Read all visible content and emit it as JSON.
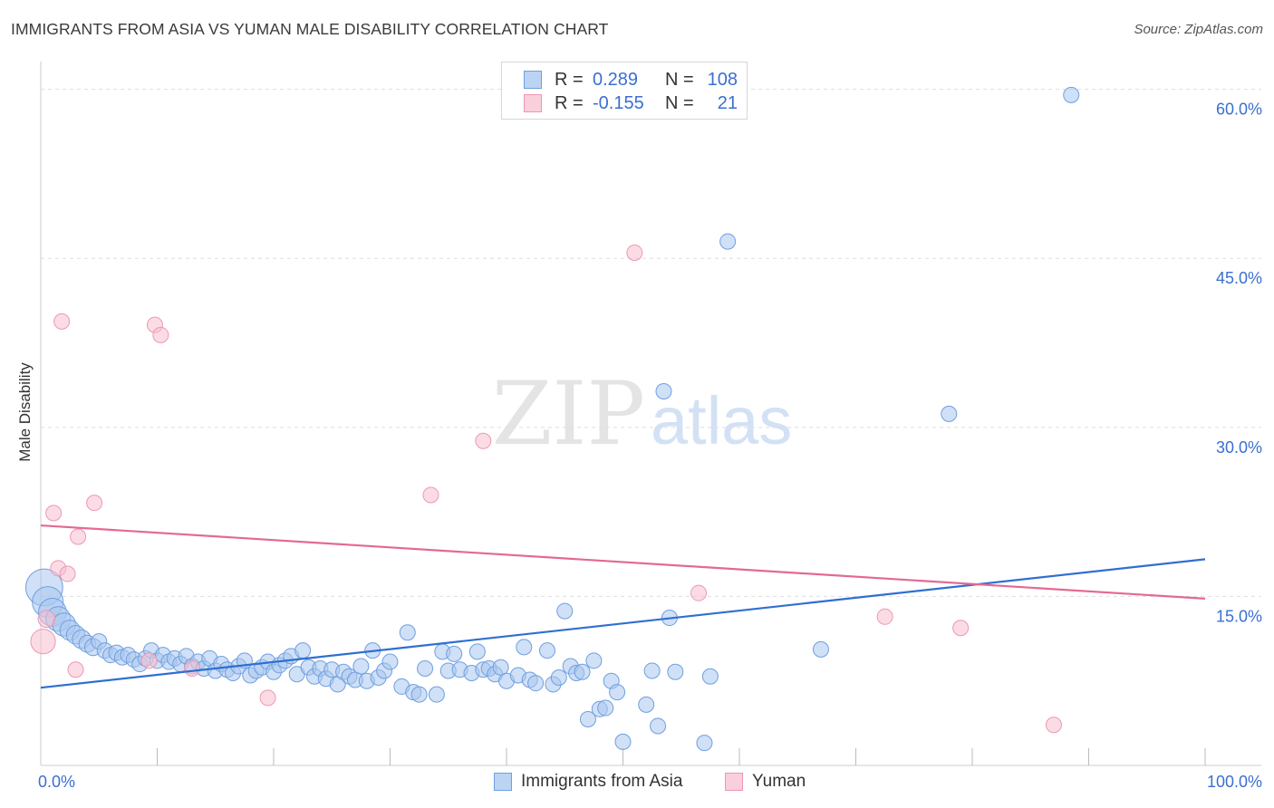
{
  "title": "IMMIGRANTS FROM ASIA VS YUMAN MALE DISABILITY CORRELATION CHART",
  "source": "Source: ZipAtlas.com",
  "watermark": {
    "zip": "ZIP",
    "atlas": "atlas"
  },
  "colors": {
    "blue_fill": "#a9c7ef",
    "blue_stroke": "#6f9fe0",
    "blue_line": "#2f6fd0",
    "pink_fill": "#f7bfd0",
    "pink_stroke": "#ee97b2",
    "pink_line": "#e26a93",
    "grid": "#dddddd",
    "tick_label": "#3b6fd0"
  },
  "legend": {
    "rows": [
      {
        "r_label": "R =",
        "r_value": "0.289",
        "n_label": "N =",
        "n_value": "108"
      },
      {
        "r_label": "R =",
        "r_value": "-0.155",
        "n_label": "N =",
        "n_value": "21"
      }
    ]
  },
  "bottom_legend": [
    "Immigrants from Asia",
    "Yuman"
  ],
  "chart_data": {
    "type": "scatter",
    "title": "IMMIGRANTS FROM ASIA VS YUMAN MALE DISABILITY CORRELATION CHART",
    "xlabel": "",
    "ylabel": "Male Disability",
    "xlim": [
      0,
      100
    ],
    "ylim": [
      0,
      61.5
    ],
    "x_tick_labels": [
      {
        "value": 0,
        "label": "0.0%"
      },
      {
        "value": 100,
        "label": "100.0%"
      }
    ],
    "y_tick_labels": [
      {
        "value": 15,
        "label": "15.0%"
      },
      {
        "value": 30,
        "label": "30.0%"
      },
      {
        "value": 45,
        "label": "45.0%"
      },
      {
        "value": 60,
        "label": "60.0%"
      }
    ],
    "x_minor_ticks": [
      10,
      20,
      30,
      40,
      50,
      60,
      70,
      80,
      90
    ],
    "series": [
      {
        "name": "Immigrants from Asia",
        "r": 0.289,
        "n": 108,
        "trend": {
          "x": [
            0,
            100
          ],
          "y": [
            6.9,
            18.3
          ]
        },
        "points": [
          [
            0.3,
            15.8,
            2.4
          ],
          [
            0.6,
            14.5,
            2.0
          ],
          [
            1.0,
            13.6,
            1.8
          ],
          [
            1.5,
            13.0,
            1.6
          ],
          [
            2.0,
            12.5,
            1.5
          ],
          [
            2.5,
            12.0,
            1.3
          ],
          [
            3.0,
            11.6,
            1.2
          ],
          [
            3.5,
            11.2,
            1.2
          ],
          [
            4.0,
            10.8,
            1.1
          ],
          [
            4.5,
            10.5,
            1.1
          ],
          [
            5.0,
            11.0,
            1.0
          ],
          [
            5.5,
            10.2,
            1.0
          ],
          [
            6.0,
            9.8,
            1.0
          ],
          [
            6.5,
            10.0,
            1.0
          ],
          [
            7.0,
            9.6,
            1.0
          ],
          [
            7.5,
            9.8,
            1.0
          ],
          [
            8.0,
            9.4,
            1.0
          ],
          [
            8.5,
            9.0,
            1.0
          ],
          [
            9.0,
            9.5,
            1.0
          ],
          [
            9.5,
            10.2,
            1.0
          ],
          [
            10.0,
            9.3,
            1.0
          ],
          [
            10.5,
            9.8,
            1.0
          ],
          [
            11.0,
            9.2,
            1.0
          ],
          [
            11.5,
            9.5,
            1.0
          ],
          [
            12.0,
            9.0,
            1.0
          ],
          [
            12.5,
            9.7,
            1.0
          ],
          [
            13.0,
            8.8,
            1.0
          ],
          [
            13.5,
            9.2,
            1.0
          ],
          [
            14.0,
            8.6,
            1.0
          ],
          [
            14.5,
            9.5,
            1.0
          ],
          [
            15.0,
            8.4,
            1.0
          ],
          [
            15.5,
            9.0,
            1.0
          ],
          [
            16.0,
            8.5,
            1.0
          ],
          [
            16.5,
            8.2,
            1.0
          ],
          [
            17.0,
            8.8,
            1.0
          ],
          [
            17.5,
            9.3,
            1.0
          ],
          [
            18.0,
            8.0,
            1.0
          ],
          [
            18.5,
            8.4,
            1.0
          ],
          [
            19.0,
            8.7,
            1.0
          ],
          [
            19.5,
            9.2,
            1.0
          ],
          [
            20.0,
            8.3,
            1.0
          ],
          [
            20.5,
            8.9,
            1.0
          ],
          [
            21.0,
            9.3,
            1.0
          ],
          [
            21.5,
            9.7,
            1.0
          ],
          [
            22.0,
            8.1,
            1.0
          ],
          [
            22.5,
            10.2,
            1.0
          ],
          [
            23.0,
            8.7,
            1.0
          ],
          [
            23.5,
            7.9,
            1.0
          ],
          [
            24.0,
            8.6,
            1.0
          ],
          [
            24.5,
            7.7,
            1.0
          ],
          [
            25.0,
            8.5,
            1.0
          ],
          [
            25.5,
            7.2,
            1.0
          ],
          [
            26.0,
            8.3,
            1.0
          ],
          [
            26.5,
            7.9,
            1.0
          ],
          [
            27.0,
            7.6,
            1.0
          ],
          [
            27.5,
            8.8,
            1.0
          ],
          [
            28.0,
            7.5,
            1.0
          ],
          [
            28.5,
            10.2,
            1.0
          ],
          [
            29.0,
            7.8,
            1.0
          ],
          [
            29.5,
            8.4,
            1.0
          ],
          [
            30.0,
            9.2,
            1.0
          ],
          [
            31.0,
            7.0,
            1.0
          ],
          [
            31.5,
            11.8,
            1.0
          ],
          [
            32.0,
            6.5,
            1.0
          ],
          [
            32.5,
            6.3,
            1.0
          ],
          [
            33.0,
            8.6,
            1.0
          ],
          [
            34.0,
            6.3,
            1.0
          ],
          [
            34.5,
            10.1,
            1.0
          ],
          [
            35.0,
            8.4,
            1.0
          ],
          [
            35.5,
            9.9,
            1.0
          ],
          [
            36.0,
            8.5,
            1.0
          ],
          [
            37.0,
            8.2,
            1.0
          ],
          [
            37.5,
            10.1,
            1.0
          ],
          [
            38.0,
            8.5,
            1.0
          ],
          [
            38.5,
            8.6,
            1.0
          ],
          [
            39.0,
            8.1,
            1.0
          ],
          [
            39.5,
            8.7,
            1.0
          ],
          [
            40.0,
            7.5,
            1.0
          ],
          [
            41.0,
            8.0,
            1.0
          ],
          [
            41.5,
            10.5,
            1.0
          ],
          [
            42.0,
            7.6,
            1.0
          ],
          [
            42.5,
            7.3,
            1.0
          ],
          [
            43.5,
            10.2,
            1.0
          ],
          [
            44.0,
            7.2,
            1.0
          ],
          [
            44.5,
            7.8,
            1.0
          ],
          [
            45.0,
            13.7,
            1.0
          ],
          [
            45.5,
            8.8,
            1.0
          ],
          [
            46.0,
            8.2,
            1.0
          ],
          [
            46.5,
            8.3,
            1.0
          ],
          [
            47.0,
            4.1,
            1.0
          ],
          [
            47.5,
            9.3,
            1.0
          ],
          [
            48.0,
            5.0,
            1.0
          ],
          [
            48.5,
            5.1,
            1.0
          ],
          [
            49.0,
            7.5,
            1.0
          ],
          [
            49.5,
            6.5,
            1.0
          ],
          [
            50.0,
            2.1,
            1.0
          ],
          [
            52.0,
            5.4,
            1.0
          ],
          [
            52.5,
            8.4,
            1.0
          ],
          [
            53.0,
            3.5,
            1.0
          ],
          [
            53.5,
            33.2,
            1.0
          ],
          [
            54.0,
            13.1,
            1.0
          ],
          [
            54.5,
            8.3,
            1.0
          ],
          [
            57.0,
            2.0,
            1.0
          ],
          [
            57.5,
            7.9,
            1.0
          ],
          [
            59.0,
            46.5,
            1.0
          ],
          [
            67.0,
            10.3,
            1.0
          ],
          [
            78.0,
            31.2,
            1.0
          ],
          [
            88.5,
            59.5,
            1.0
          ]
        ]
      },
      {
        "name": "Yuman",
        "r": -0.155,
        "n": 21,
        "trend": {
          "x": [
            0,
            100
          ],
          "y": [
            21.3,
            14.8
          ]
        },
        "points": [
          [
            0.2,
            11.0,
            1.6
          ],
          [
            0.5,
            13.0,
            1.1
          ],
          [
            1.1,
            22.4,
            1.0
          ],
          [
            1.5,
            17.5,
            1.0
          ],
          [
            1.8,
            39.4,
            1.0
          ],
          [
            2.3,
            17.0,
            1.0
          ],
          [
            3.0,
            8.5,
            1.0
          ],
          [
            3.2,
            20.3,
            1.0
          ],
          [
            4.6,
            23.3,
            1.0
          ],
          [
            9.3,
            9.3,
            1.0
          ],
          [
            9.8,
            39.1,
            1.0
          ],
          [
            10.3,
            38.2,
            1.0
          ],
          [
            13.0,
            8.6,
            1.0
          ],
          [
            19.5,
            6.0,
            1.0
          ],
          [
            33.5,
            24.0,
            1.0
          ],
          [
            38.0,
            28.8,
            1.0
          ],
          [
            51.0,
            45.5,
            1.0
          ],
          [
            56.5,
            15.3,
            1.0
          ],
          [
            72.5,
            13.2,
            1.0
          ],
          [
            79.0,
            12.2,
            1.0
          ],
          [
            87.0,
            3.6,
            1.0
          ]
        ]
      }
    ]
  }
}
